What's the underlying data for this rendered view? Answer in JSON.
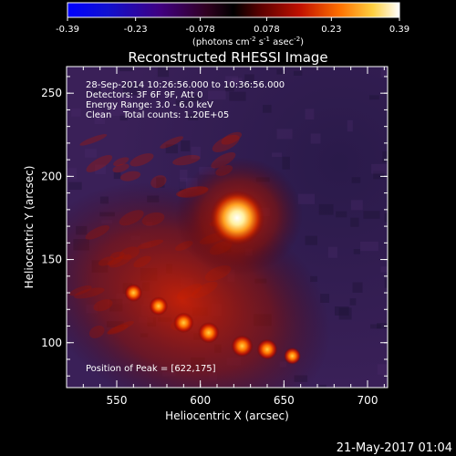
{
  "colorbar": {
    "tick_labels": [
      "-0.39",
      "-0.23",
      "-0.078",
      "0.078",
      "0.23",
      "0.39"
    ],
    "range": [
      -0.39,
      0.39
    ],
    "unit_label": "(photons cm",
    "unit_sup1": "-2",
    "unit_mid": " s",
    "unit_sup2": "-1",
    "unit_end": " asec",
    "unit_sup3": "-2",
    "unit_close": ")"
  },
  "chart_data": {
    "type": "heatmap",
    "title": "Reconstructed RHESSI Image",
    "xlabel": "Heliocentric X (arcsec)",
    "ylabel": "Heliocentric Y (arcsec)",
    "xlim": [
      520,
      712
    ],
    "ylim": [
      73,
      266
    ],
    "x_ticks": [
      550,
      600,
      650,
      700
    ],
    "y_ticks": [
      100,
      150,
      200,
      250
    ],
    "annotations": [
      "28-Sep-2014 10:26:56.000 to 10:36:56.000",
      "Detectors: 3F 6F 9F, Att 0",
      "Energy Range: 3.0 - 6.0 keV",
      "Clean    Total counts: 1.20E+05"
    ],
    "peak_label": "Position of Peak = [622,175]",
    "peak": [
      622,
      175
    ],
    "sources": [
      {
        "x": 622,
        "y": 175,
        "intensity": 0.39
      },
      {
        "x": 560,
        "y": 130,
        "intensity": 0.2
      },
      {
        "x": 575,
        "y": 122,
        "intensity": 0.22
      },
      {
        "x": 590,
        "y": 112,
        "intensity": 0.26
      },
      {
        "x": 605,
        "y": 106,
        "intensity": 0.28
      },
      {
        "x": 625,
        "y": 98,
        "intensity": 0.3
      },
      {
        "x": 640,
        "y": 96,
        "intensity": 0.27
      },
      {
        "x": 655,
        "y": 92,
        "intensity": 0.18
      }
    ]
  },
  "footer": {
    "timestamp": "21-May-2017 01:04"
  }
}
